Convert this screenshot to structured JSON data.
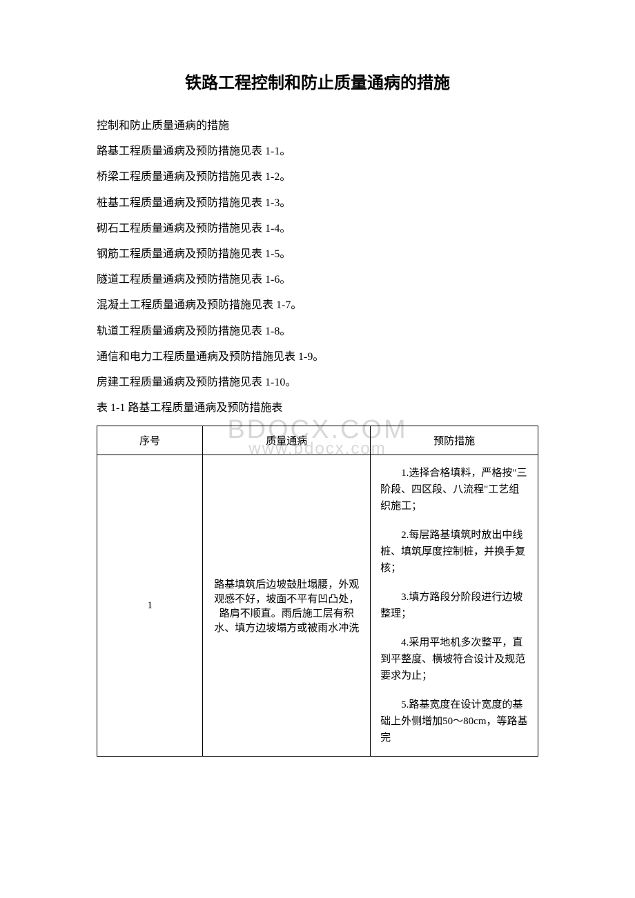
{
  "title": "铁路工程控制和防止质量通病的措施",
  "intro": [
    "控制和防止质量通病的措施",
    "路基工程质量通病及预防措施见表 1-1。",
    "桥梁工程质量通病及预防措施见表 1-2。",
    "桩基工程质量通病及预防措施见表 1-3。",
    "砌石工程质量通病及预防措施见表 1-4。",
    "钢筋工程质量通病及预防措施见表 1-5。",
    "隧道工程质量通病及预防措施见表 1-6。",
    "混凝土工程质量通病及预防措施见表 1-7。",
    "轨道工程质量通病及预防措施见表 1-8。",
    "通信和电力工程质量通病及预防措施见表 1-9。",
    "房建工程质量通病及预防措施见表 1-10。",
    "表 1-1 路基工程质量通病及预防措施表"
  ],
  "watermark_line1": "BDOCX.COM",
  "watermark_line2": "www.bdocx.com",
  "table": {
    "headers": [
      "序号",
      "质量通病",
      "预防措施"
    ],
    "row1": {
      "num": "1",
      "defect": "路基填筑后边坡鼓肚塌腰，外观观感不好，坡面不平有凹凸处，路肩不顺直。雨后施工层有积水、填方边坡塌方或被雨水冲洗",
      "measures": [
        "1.选择合格填料，严格按\"三阶段、四区段、八流程\"工艺组织施工；",
        "2.每层路基填筑时放出中线桩、填筑厚度控制桩，并换手复核；",
        "3.填方路段分阶段进行边坡整理；",
        "4.采用平地机多次整平，直到平整度、横坡符合设计及规范要求为止；",
        "5.路基宽度在设计宽度的基础上外侧增加50～80cm，等路基完"
      ]
    }
  }
}
